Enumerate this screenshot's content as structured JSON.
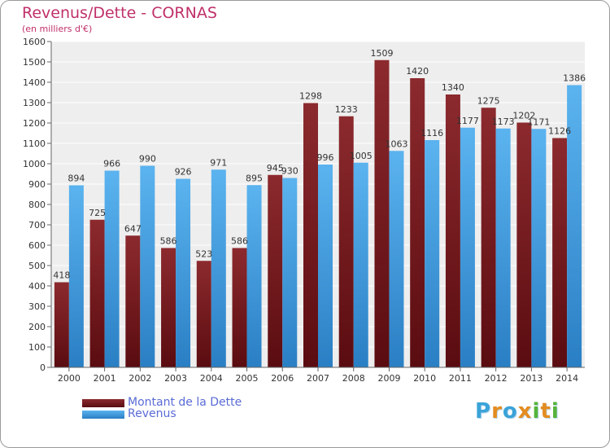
{
  "chart_data": {
    "type": "bar",
    "title": "Revenus/Dette - CORNAS",
    "subtitle": "(en milliers d'€)",
    "categories": [
      "2000",
      "2001",
      "2002",
      "2003",
      "2004",
      "2005",
      "2006",
      "2007",
      "2008",
      "2009",
      "2010",
      "2011",
      "2012",
      "2013",
      "2014"
    ],
    "series": [
      {
        "name": "Montant de la Dette",
        "color": "#7b1f23",
        "values": [
          418,
          725,
          647,
          586,
          523,
          586,
          945,
          1298,
          1233,
          1509,
          1420,
          1340,
          1275,
          1202,
          1126
        ]
      },
      {
        "name": "Revenus",
        "color": "#3d9de0",
        "values": [
          894,
          966,
          990,
          926,
          971,
          895,
          930,
          996,
          1005,
          1063,
          1116,
          1177,
          1173,
          1171,
          1386
        ]
      }
    ],
    "ylim": [
      0,
      1600
    ],
    "yticks": [
      0,
      100,
      200,
      300,
      400,
      500,
      600,
      700,
      800,
      900,
      1000,
      1100,
      1200,
      1300,
      1400,
      1500,
      1600
    ],
    "grid": true,
    "legend": "bottom-left"
  },
  "legend": {
    "items": [
      {
        "label": "Montant de la Dette",
        "color": "#7b1f23"
      },
      {
        "label": "Revenus",
        "color": "#3d9de0"
      }
    ]
  },
  "logo": {
    "text": "Proxiti"
  }
}
